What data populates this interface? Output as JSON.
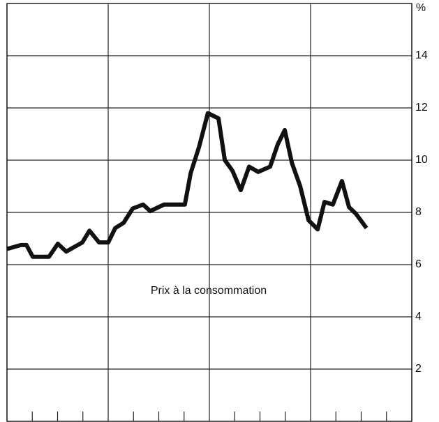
{
  "chart_data": {
    "type": "line",
    "y_axis_label": "%",
    "annotation": "Prix à la consommation",
    "x": [
      0,
      0.55,
      0.77,
      1.02,
      1.66,
      2.01,
      2.34,
      2.98,
      3.26,
      3.64,
      4.0,
      4.28,
      4.61,
      4.97,
      5.38,
      5.66,
      6.21,
      7.03,
      7.26,
      7.59,
      7.94,
      8.36,
      8.61,
      8.91,
      9.24,
      9.57,
      9.93,
      10.4,
      10.7,
      10.98,
      11.26,
      11.59,
      11.92,
      12.28,
      12.55,
      12.88,
      13.24,
      13.52,
      13.79,
      14.21
    ],
    "series": [
      {
        "color": "#111111",
        "values": [
          6.6,
          6.75,
          6.75,
          6.3,
          6.3,
          6.8,
          6.5,
          6.85,
          7.3,
          6.85,
          6.85,
          7.4,
          7.6,
          8.15,
          8.3,
          8.05,
          8.3,
          8.3,
          9.5,
          10.5,
          11.8,
          11.6,
          10.0,
          9.6,
          8.85,
          9.75,
          9.55,
          9.75,
          10.6,
          11.15,
          9.9,
          9.0,
          7.7,
          7.35,
          8.4,
          8.3,
          9.2,
          8.2,
          7.95,
          7.4
        ]
      }
    ],
    "xlim": [
      0,
      16
    ],
    "xticks": [
      0,
      1,
      2,
      3,
      4,
      5,
      6,
      7,
      8,
      9,
      10,
      11,
      12,
      13,
      14,
      15,
      16
    ],
    "ylim": [
      0,
      16
    ],
    "yticks": [
      2,
      4,
      6,
      8,
      10,
      12,
      14
    ],
    "grid": true
  }
}
